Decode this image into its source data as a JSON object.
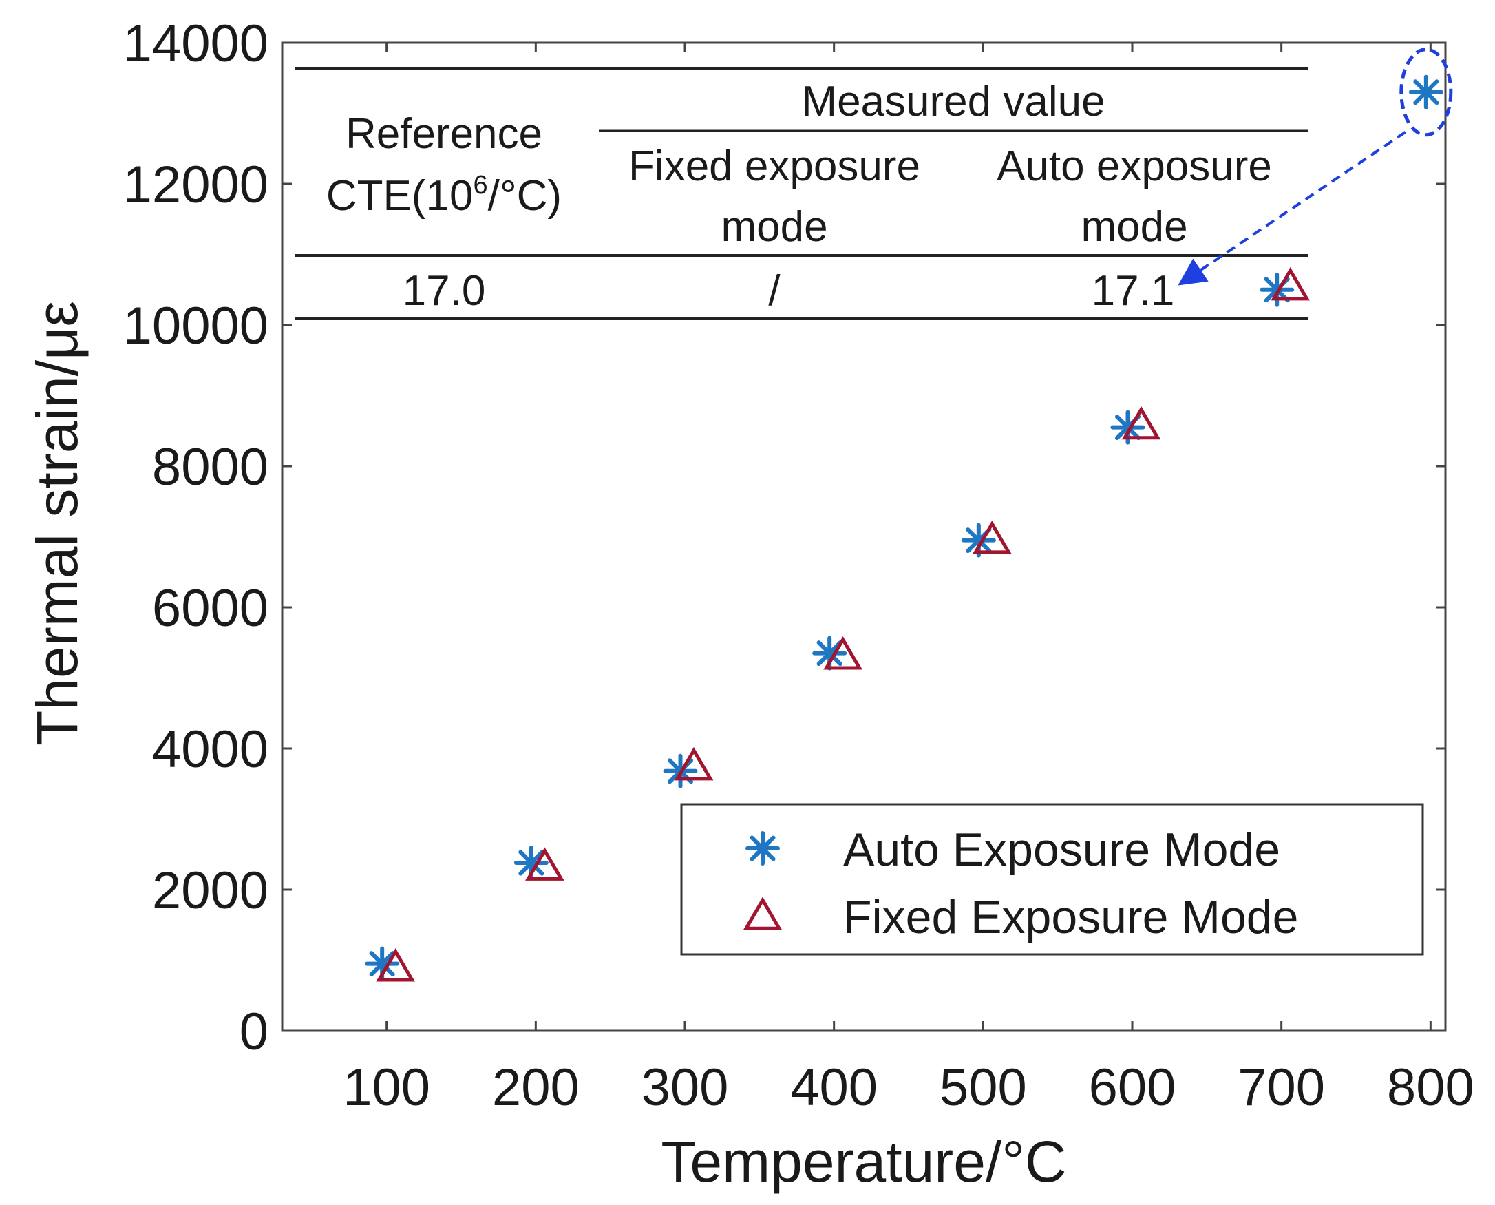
{
  "chart_data": {
    "type": "scatter",
    "xlabel": "Temperature/°C",
    "ylabel": "Thermal strain/με",
    "xlim": [
      30,
      810
    ],
    "ylim": [
      0,
      14000
    ],
    "xticks": [
      100,
      200,
      300,
      400,
      500,
      600,
      700,
      800
    ],
    "yticks": [
      0,
      2000,
      4000,
      6000,
      8000,
      10000,
      12000,
      14000
    ],
    "xtick_labels": [
      "100",
      "200",
      "300",
      "400",
      "500",
      "600",
      "700",
      "800"
    ],
    "ytick_labels": [
      "0",
      "2000",
      "4000",
      "6000",
      "8000",
      "10000",
      "12000",
      "14000"
    ],
    "legend_position": "bottom-right",
    "series": [
      {
        "name": "Auto Exposure Mode",
        "marker": "asterisk",
        "color": "#1f77c4",
        "x": [
          97,
          197,
          297,
          397,
          497,
          597,
          697,
          797
        ],
        "values": [
          950,
          2380,
          3680,
          5350,
          6950,
          8550,
          10500,
          13300
        ]
      },
      {
        "name": "Fixed Exposure Mode",
        "marker": "triangle",
        "color": "#a2142f",
        "x": [
          106,
          206,
          306,
          406,
          506,
          606,
          706
        ],
        "values": [
          900,
          2330,
          3750,
          5320,
          6960,
          8580,
          10550
        ]
      }
    ],
    "annotation": {
      "target": "Auto Exposure Mode point at 800",
      "style": "dashed ellipse with dashed arrow",
      "color": "#1f3fe0"
    },
    "inset_table": {
      "col1_header_line1": "Reference",
      "col1_header_line2": "CTE(10",
      "col1_header_sup": "6",
      "col1_header_line2_end": "/°C)",
      "group_header": "Measured value",
      "col2_header_line1": "Fixed exposure",
      "col2_header_line2": "mode",
      "col3_header_line1": "Auto exposure",
      "col3_header_line2": "mode",
      "row": [
        "17.0",
        "/",
        "17.1"
      ]
    }
  }
}
